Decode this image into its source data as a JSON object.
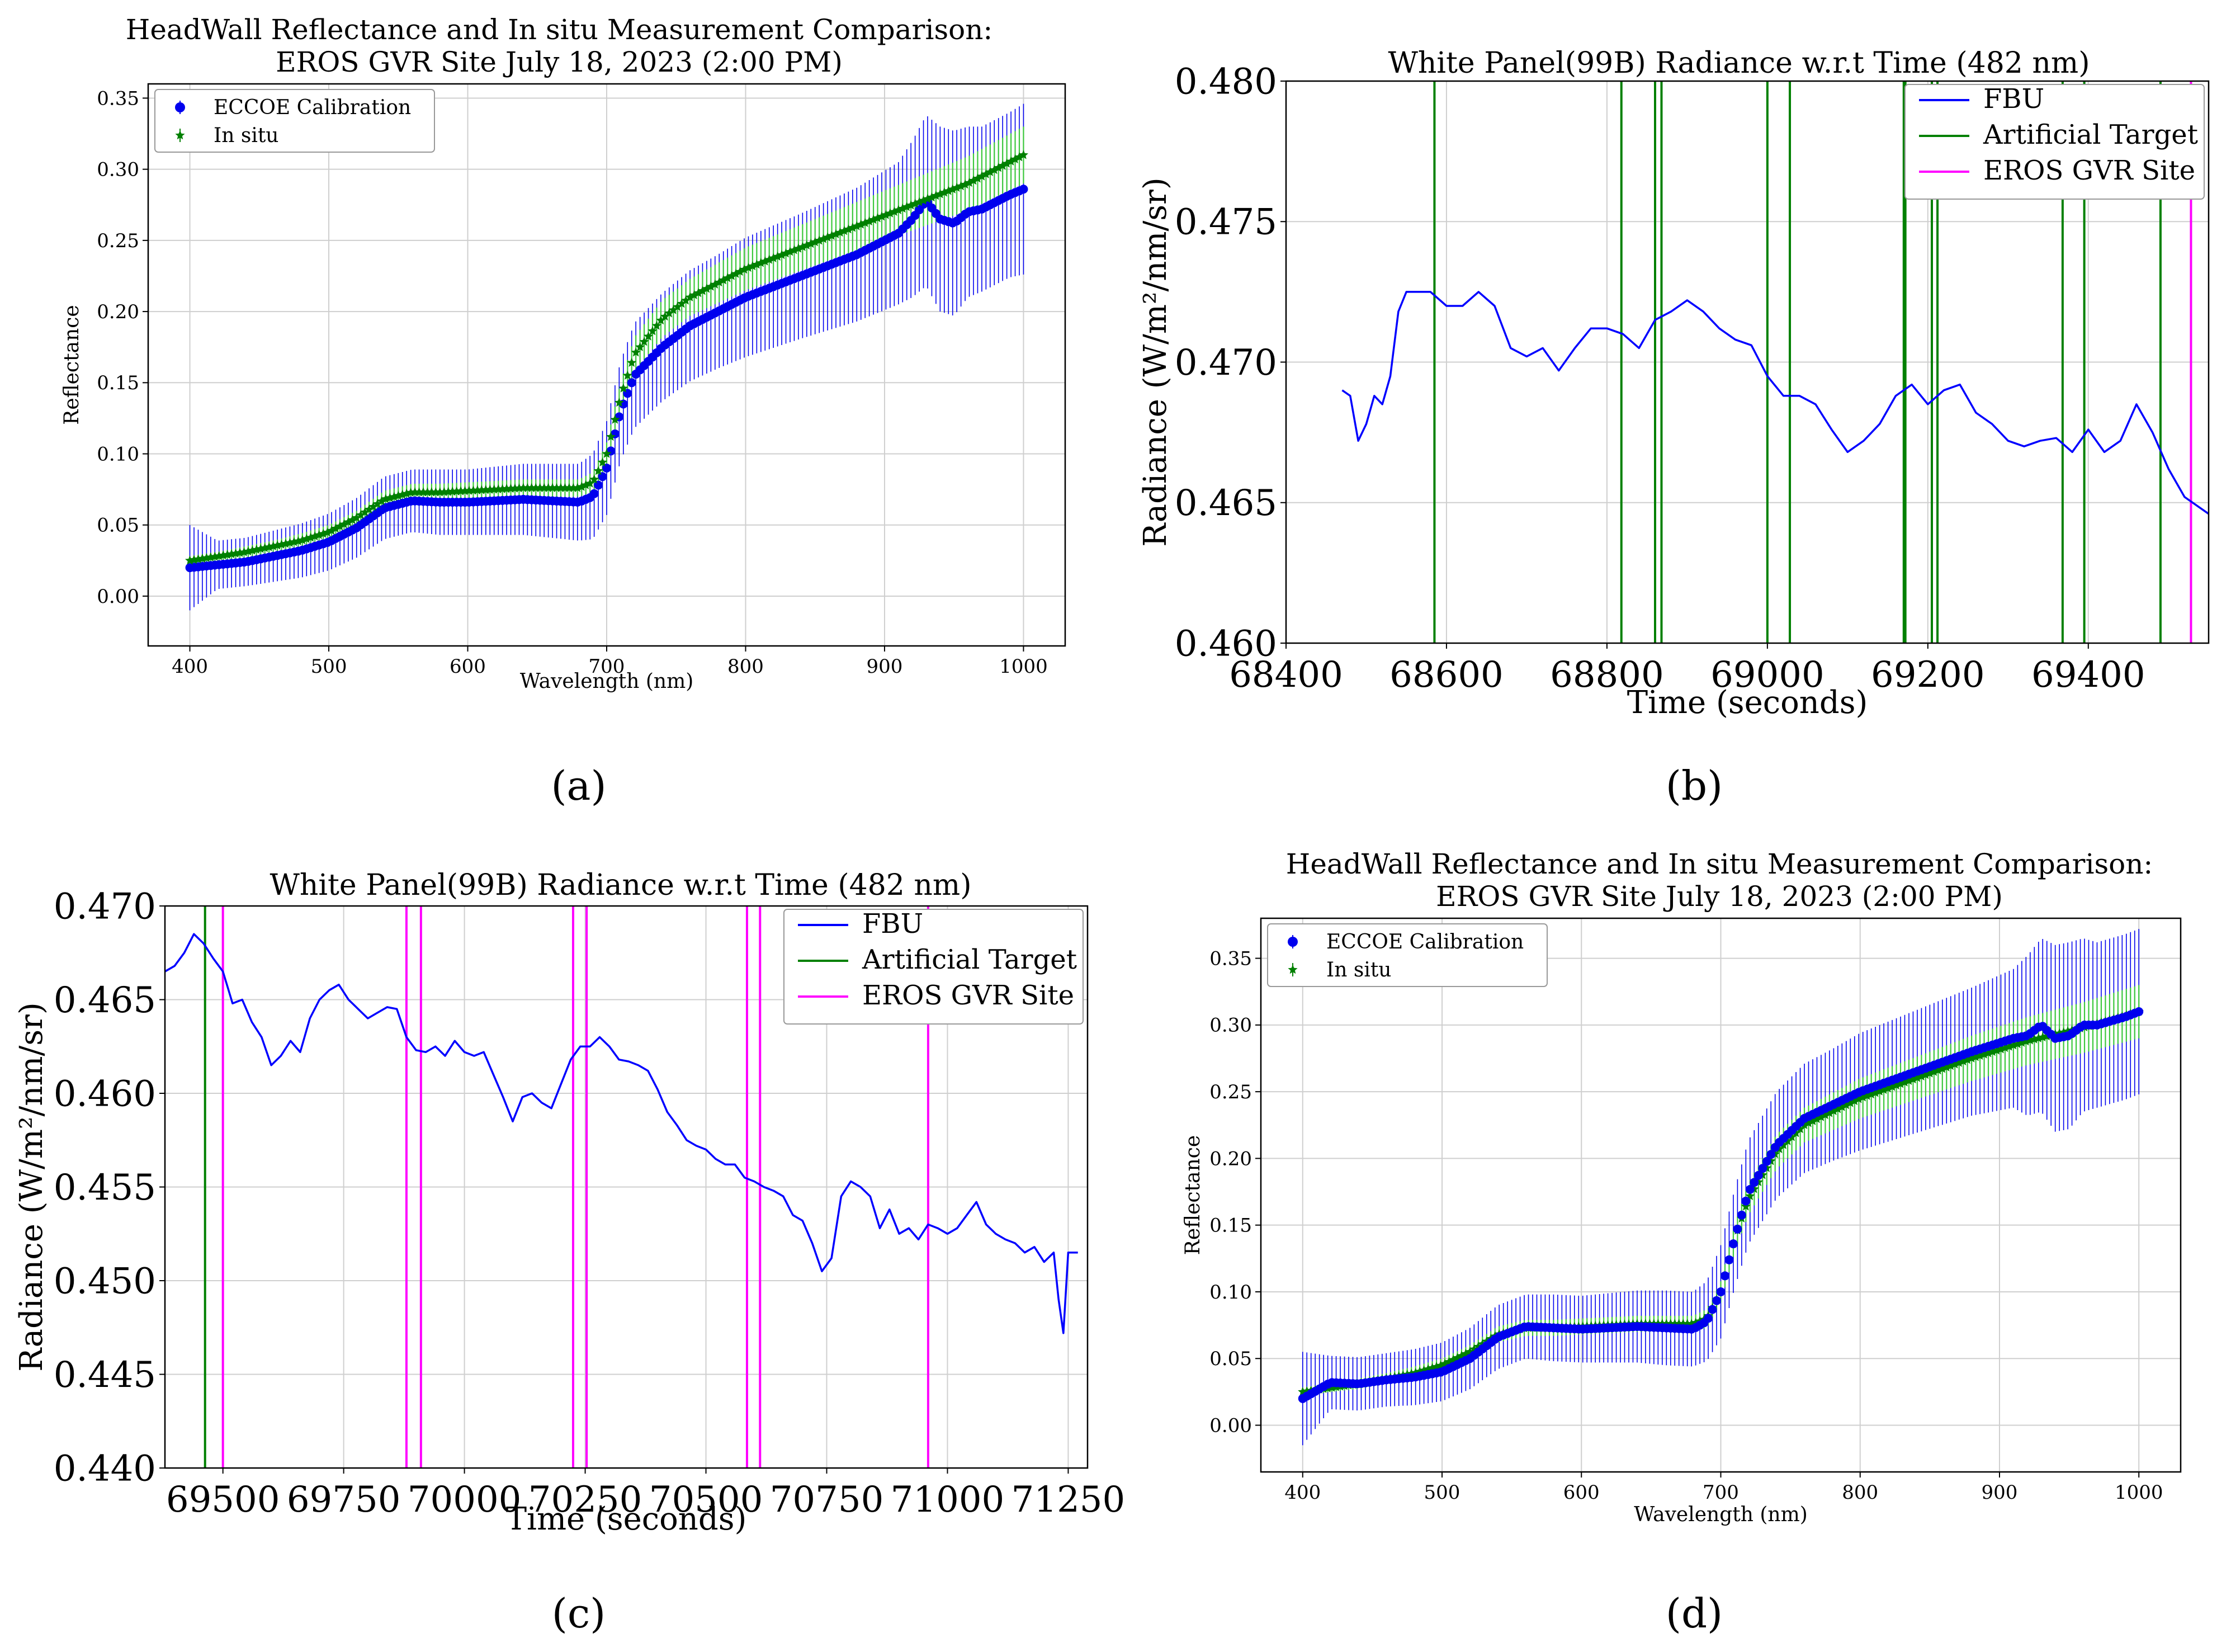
{
  "figure": {
    "captions": [
      "(a)",
      "(b)",
      "(c)",
      "(d)"
    ]
  },
  "colors": {
    "eccoe": "#0000ee",
    "insitu": "#008000",
    "insitu_err": "#3cc83c",
    "fbu": "#0000ff",
    "artificial": "#008000",
    "eros": "#ff00ff"
  },
  "chart_data": [
    {
      "panel": "a",
      "type": "scatter",
      "title": "HeadWall Reflectance and In situ Measurement Comparison:",
      "subtitle": "EROS GVR Site July 18, 2023 (2:00 PM)",
      "xlabel": "Wavelength (nm)",
      "ylabel": "Reflectance",
      "xlim": [
        370,
        1030
      ],
      "ylim": [
        -0.035,
        0.36
      ],
      "xticks": [
        "400",
        "500",
        "600",
        "700",
        "800",
        "900",
        "1000"
      ],
      "xtick_values": [
        400,
        500,
        600,
        700,
        800,
        900,
        1000
      ],
      "yticks": [
        "0.00",
        "0.05",
        "0.10",
        "0.15",
        "0.20",
        "0.25",
        "0.30",
        "0.35"
      ],
      "ytick_values": [
        0,
        0.05,
        0.1,
        0.15,
        0.2,
        0.25,
        0.3,
        0.35
      ],
      "grid": true,
      "legend": [
        "ECCOE Calibration",
        "In situ"
      ],
      "legend_position": "top-left",
      "series": [
        {
          "name": "ECCOE Calibration",
          "marker": "circle",
          "x": [
            400,
            420,
            440,
            460,
            480,
            500,
            520,
            540,
            560,
            580,
            600,
            620,
            640,
            660,
            680,
            690,
            700,
            710,
            720,
            740,
            760,
            780,
            800,
            840,
            880,
            910,
            920,
            930,
            940,
            950,
            960,
            970,
            990,
            1000
          ],
          "y": [
            0.02,
            0.022,
            0.024,
            0.028,
            0.032,
            0.038,
            0.048,
            0.062,
            0.067,
            0.066,
            0.066,
            0.067,
            0.068,
            0.067,
            0.066,
            0.07,
            0.09,
            0.13,
            0.155,
            0.175,
            0.19,
            0.2,
            0.21,
            0.225,
            0.24,
            0.255,
            0.265,
            0.278,
            0.265,
            0.262,
            0.27,
            0.272,
            0.282,
            0.286
          ],
          "err": [
            0.03,
            0.017,
            0.017,
            0.018,
            0.019,
            0.02,
            0.021,
            0.022,
            0.022,
            0.023,
            0.023,
            0.024,
            0.025,
            0.026,
            0.027,
            0.03,
            0.033,
            0.035,
            0.037,
            0.038,
            0.039,
            0.04,
            0.042,
            0.044,
            0.047,
            0.05,
            0.055,
            0.06,
            0.065,
            0.065,
            0.06,
            0.058,
            0.058,
            0.06
          ]
        },
        {
          "name": "In situ",
          "marker": "star",
          "x": [
            400,
            420,
            440,
            460,
            480,
            500,
            520,
            540,
            560,
            580,
            600,
            620,
            640,
            660,
            680,
            690,
            700,
            710,
            720,
            740,
            760,
            780,
            800,
            840,
            880,
            920,
            960,
            1000
          ],
          "y": [
            0.025,
            0.028,
            0.031,
            0.035,
            0.039,
            0.045,
            0.055,
            0.068,
            0.073,
            0.073,
            0.074,
            0.075,
            0.076,
            0.076,
            0.076,
            0.08,
            0.1,
            0.14,
            0.17,
            0.195,
            0.21,
            0.22,
            0.23,
            0.245,
            0.26,
            0.275,
            0.29,
            0.31
          ],
          "err": [
            0.003,
            0.003,
            0.004,
            0.004,
            0.005,
            0.005,
            0.005,
            0.006,
            0.006,
            0.006,
            0.006,
            0.006,
            0.006,
            0.006,
            0.006,
            0.007,
            0.008,
            0.01,
            0.012,
            0.013,
            0.013,
            0.014,
            0.015,
            0.016,
            0.017,
            0.018,
            0.019,
            0.02
          ]
        }
      ]
    },
    {
      "panel": "b",
      "type": "line",
      "title": "White Panel(99B) Radiance w.r.t Time (482 nm)",
      "xlabel": "Time (seconds)",
      "ylabel": "Radiance (W/m²/nm/sr)",
      "xlim": [
        68400,
        69550
      ],
      "ylim": [
        0.46,
        0.48
      ],
      "xticks": [
        "68400",
        "68600",
        "68800",
        "69000",
        "69200",
        "69400"
      ],
      "xtick_values": [
        68400,
        68600,
        68800,
        69000,
        69200,
        69400
      ],
      "yticks": [
        "0.460",
        "0.465",
        "0.470",
        "0.475",
        "0.480"
      ],
      "ytick_values": [
        0.46,
        0.465,
        0.47,
        0.475,
        0.48
      ],
      "grid": true,
      "legend": [
        "FBU",
        "Artificial Target",
        "EROS GVR Site"
      ],
      "legend_position": "top-right",
      "series": [
        {
          "name": "FBU",
          "x": [
            68470,
            68480,
            68490,
            68500,
            68510,
            68520,
            68530,
            68540,
            68550,
            68560,
            68580,
            68600,
            68620,
            68640,
            68660,
            68680,
            68700,
            68720,
            68740,
            68760,
            68780,
            68800,
            68820,
            68840,
            68860,
            68880,
            68900,
            68920,
            68940,
            68960,
            68980,
            69000,
            69020,
            69040,
            69060,
            69080,
            69100,
            69120,
            69140,
            69160,
            69180,
            69200,
            69220,
            69240,
            69260,
            69280,
            69300,
            69320,
            69340,
            69360,
            69380,
            69400,
            69420,
            69440,
            69460,
            69480,
            69500,
            69520,
            69540,
            69550
          ],
          "y": [
            0.469,
            0.4688,
            0.4672,
            0.4678,
            0.4688,
            0.4685,
            0.4695,
            0.4718,
            0.4725,
            0.4725,
            0.4725,
            0.472,
            0.472,
            0.4725,
            0.472,
            0.4705,
            0.4702,
            0.4705,
            0.4697,
            0.4705,
            0.4712,
            0.4712,
            0.471,
            0.4705,
            0.4715,
            0.4718,
            0.4722,
            0.4718,
            0.4712,
            0.4708,
            0.4706,
            0.4695,
            0.4688,
            0.4688,
            0.4685,
            0.4676,
            0.4668,
            0.4672,
            0.4678,
            0.4688,
            0.4692,
            0.4685,
            0.469,
            0.4692,
            0.4682,
            0.4678,
            0.4672,
            0.467,
            0.4672,
            0.4673,
            0.4668,
            0.4676,
            0.4668,
            0.4672,
            0.4685,
            0.4675,
            0.4662,
            0.4652,
            0.4648,
            0.4646
          ]
        },
        {
          "name": "Artificial Target",
          "type": "vlines",
          "x": [
            68585,
            68818,
            68860,
            68868,
            69000,
            69028,
            69170,
            69172,
            69205,
            69212,
            69368,
            69395,
            69490
          ]
        },
        {
          "name": "EROS GVR Site",
          "type": "vlines",
          "x": [
            69528
          ]
        }
      ]
    },
    {
      "panel": "c",
      "type": "line",
      "title": "White Panel(99B) Radiance w.r.t Time (482 nm)",
      "xlabel": "Time (seconds)",
      "ylabel": "Radiance (W/m²/nm/sr)",
      "xlim": [
        69380,
        71290
      ],
      "ylim": [
        0.44,
        0.47
      ],
      "xticks": [
        "69500",
        "69750",
        "70000",
        "70250",
        "70500",
        "70750",
        "71000",
        "71250"
      ],
      "xtick_values": [
        69500,
        69750,
        70000,
        70250,
        70500,
        70750,
        71000,
        71250
      ],
      "yticks": [
        "0.440",
        "0.445",
        "0.450",
        "0.455",
        "0.460",
        "0.465",
        "0.470"
      ],
      "ytick_values": [
        0.44,
        0.445,
        0.45,
        0.455,
        0.46,
        0.465,
        0.47
      ],
      "grid": true,
      "legend": [
        "FBU",
        "Artificial Target",
        "EROS GVR Site"
      ],
      "legend_position": "top-right",
      "series": [
        {
          "name": "FBU",
          "x": [
            69380,
            69400,
            69420,
            69440,
            69460,
            69480,
            69500,
            69520,
            69540,
            69560,
            69580,
            69600,
            69620,
            69640,
            69660,
            69680,
            69700,
            69720,
            69740,
            69760,
            69780,
            69800,
            69820,
            69840,
            69860,
            69880,
            69900,
            69920,
            69940,
            69960,
            69980,
            70000,
            70020,
            70040,
            70060,
            70080,
            70100,
            70120,
            70140,
            70160,
            70180,
            70200,
            70220,
            70240,
            70260,
            70280,
            70300,
            70320,
            70340,
            70360,
            70380,
            70400,
            70420,
            70440,
            70460,
            70480,
            70500,
            70520,
            70540,
            70560,
            70580,
            70600,
            70620,
            70640,
            70660,
            70680,
            70700,
            70720,
            70740,
            70760,
            70780,
            70800,
            70820,
            70840,
            70860,
            70880,
            70900,
            70920,
            70940,
            70960,
            70980,
            71000,
            71020,
            71040,
            71060,
            71080,
            71100,
            71120,
            71140,
            71160,
            71180,
            71200,
            71220,
            71230,
            71240,
            71250,
            71270
          ],
          "y": [
            0.4665,
            0.4668,
            0.4675,
            0.4685,
            0.468,
            0.4672,
            0.4665,
            0.4648,
            0.465,
            0.4638,
            0.463,
            0.4615,
            0.462,
            0.4628,
            0.4622,
            0.464,
            0.465,
            0.4655,
            0.4658,
            0.465,
            0.4645,
            0.464,
            0.4643,
            0.4646,
            0.4645,
            0.463,
            0.4623,
            0.4622,
            0.4625,
            0.462,
            0.4628,
            0.4622,
            0.462,
            0.4622,
            0.461,
            0.4598,
            0.4585,
            0.4598,
            0.46,
            0.4595,
            0.4592,
            0.4605,
            0.4618,
            0.4625,
            0.4625,
            0.463,
            0.4625,
            0.4618,
            0.4617,
            0.4615,
            0.4612,
            0.4602,
            0.459,
            0.4583,
            0.4575,
            0.4572,
            0.457,
            0.4565,
            0.4562,
            0.4562,
            0.4555,
            0.4553,
            0.455,
            0.4548,
            0.4545,
            0.4535,
            0.4532,
            0.452,
            0.4505,
            0.4512,
            0.4545,
            0.4553,
            0.455,
            0.4545,
            0.4528,
            0.4538,
            0.4525,
            0.4528,
            0.4522,
            0.453,
            0.4528,
            0.4525,
            0.4528,
            0.4535,
            0.4542,
            0.453,
            0.4525,
            0.4522,
            0.452,
            0.4515,
            0.4518,
            0.451,
            0.4515,
            0.449,
            0.4472,
            0.4515,
            0.4515
          ]
        },
        {
          "name": "Artificial Target",
          "type": "vlines",
          "x": [
            69463
          ]
        },
        {
          "name": "EROS GVR Site",
          "type": "vlines",
          "x": [
            69500,
            69880,
            69910,
            70225,
            70253,
            70585,
            70612,
            70960
          ]
        }
      ]
    },
    {
      "panel": "d",
      "type": "scatter",
      "title": "HeadWall Reflectance and In situ Measurement Comparison:",
      "subtitle": "EROS GVR Site July 18, 2023 (2:00 PM)",
      "xlabel": "Wavelength (nm)",
      "ylabel": "Reflectance",
      "xlim": [
        370,
        1030
      ],
      "ylim": [
        -0.035,
        0.38
      ],
      "xticks": [
        "400",
        "500",
        "600",
        "700",
        "800",
        "900",
        "1000"
      ],
      "xtick_values": [
        400,
        500,
        600,
        700,
        800,
        900,
        1000
      ],
      "yticks": [
        "0.00",
        "0.05",
        "0.10",
        "0.15",
        "0.20",
        "0.25",
        "0.30",
        "0.35"
      ],
      "ytick_values": [
        0,
        0.05,
        0.1,
        0.15,
        0.2,
        0.25,
        0.3,
        0.35
      ],
      "grid": true,
      "legend": [
        "ECCOE Calibration",
        "In situ"
      ],
      "legend_position": "top-left",
      "series": [
        {
          "name": "ECCOE Calibration",
          "marker": "circle",
          "x": [
            400,
            420,
            440,
            460,
            480,
            500,
            520,
            540,
            560,
            580,
            600,
            620,
            640,
            660,
            680,
            690,
            700,
            710,
            720,
            740,
            760,
            780,
            800,
            840,
            880,
            910,
            920,
            930,
            940,
            950,
            960,
            970,
            990,
            1000
          ],
          "y": [
            0.02,
            0.032,
            0.031,
            0.034,
            0.036,
            0.04,
            0.05,
            0.066,
            0.074,
            0.073,
            0.072,
            0.073,
            0.074,
            0.073,
            0.072,
            0.078,
            0.1,
            0.14,
            0.175,
            0.21,
            0.23,
            0.24,
            0.25,
            0.265,
            0.28,
            0.29,
            0.292,
            0.3,
            0.29,
            0.292,
            0.3,
            0.3,
            0.306,
            0.31
          ],
          "err": [
            0.035,
            0.02,
            0.02,
            0.02,
            0.021,
            0.022,
            0.023,
            0.024,
            0.024,
            0.025,
            0.025,
            0.026,
            0.027,
            0.028,
            0.028,
            0.03,
            0.035,
            0.037,
            0.039,
            0.04,
            0.041,
            0.042,
            0.044,
            0.046,
            0.048,
            0.052,
            0.06,
            0.065,
            0.07,
            0.07,
            0.065,
            0.062,
            0.062,
            0.062
          ]
        },
        {
          "name": "In situ",
          "marker": "star",
          "x": [
            400,
            420,
            440,
            460,
            480,
            500,
            520,
            540,
            560,
            580,
            600,
            620,
            640,
            660,
            680,
            690,
            700,
            710,
            720,
            740,
            760,
            780,
            800,
            840,
            880,
            920,
            960,
            1000
          ],
          "y": [
            0.025,
            0.028,
            0.031,
            0.035,
            0.039,
            0.045,
            0.055,
            0.068,
            0.073,
            0.073,
            0.074,
            0.075,
            0.076,
            0.076,
            0.076,
            0.08,
            0.1,
            0.14,
            0.17,
            0.205,
            0.225,
            0.235,
            0.245,
            0.26,
            0.275,
            0.288,
            0.298,
            0.31
          ],
          "err": [
            0.003,
            0.003,
            0.004,
            0.004,
            0.005,
            0.005,
            0.005,
            0.006,
            0.006,
            0.006,
            0.006,
            0.006,
            0.006,
            0.006,
            0.006,
            0.007,
            0.008,
            0.01,
            0.012,
            0.013,
            0.013,
            0.014,
            0.015,
            0.016,
            0.017,
            0.018,
            0.019,
            0.02
          ]
        }
      ]
    }
  ]
}
